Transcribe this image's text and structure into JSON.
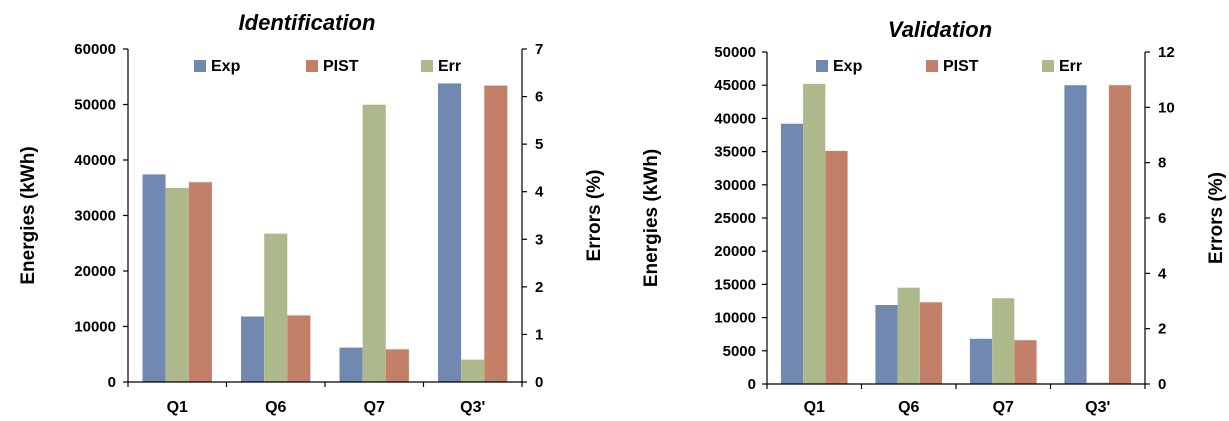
{
  "colors": {
    "Exp": "#7189b0",
    "PIST": "#c47f69",
    "Err": "#adb98a"
  },
  "chart_data": [
    {
      "type": "bar",
      "title": "Identification",
      "ylabel": "Energies (kWh)",
      "y2label": "Errors (%)",
      "categories": [
        "Q1",
        "Q6",
        "Q7",
        "Q3'"
      ],
      "ylim": [
        0,
        60000
      ],
      "y2lim": [
        0,
        7
      ],
      "yticks": [
        0,
        10000,
        20000,
        30000,
        40000,
        50000,
        60000
      ],
      "y2ticks": [
        0,
        1,
        2,
        3,
        4,
        5,
        6,
        7
      ],
      "legend": [
        "Exp",
        "PIST",
        "Err"
      ],
      "legend_position": "top",
      "series": [
        {
          "name": "Exp",
          "axis": "left",
          "values": [
            37400,
            11800,
            6200,
            53800
          ]
        },
        {
          "name": "Err",
          "axis": "right",
          "values": [
            4.08,
            3.12,
            5.83,
            0.47
          ]
        },
        {
          "name": "PIST",
          "axis": "left",
          "values": [
            36000,
            12000,
            5900,
            53400
          ]
        }
      ]
    },
    {
      "type": "bar",
      "title": "Validation",
      "ylabel": "Energies (kWh)",
      "y2label": "Errors (%)",
      "categories": [
        "Q1",
        "Q6",
        "Q7",
        "Q3'"
      ],
      "ylim": [
        0,
        50000
      ],
      "y2lim": [
        0,
        12
      ],
      "yticks": [
        0,
        5000,
        10000,
        15000,
        20000,
        25000,
        30000,
        35000,
        40000,
        45000,
        50000
      ],
      "y2ticks": [
        0,
        2,
        4,
        6,
        8,
        10,
        12
      ],
      "legend": [
        "Exp",
        "PIST",
        "Err"
      ],
      "legend_position": "top",
      "series": [
        {
          "name": "Exp",
          "axis": "left",
          "values": [
            39200,
            11900,
            6800,
            45000
          ]
        },
        {
          "name": "Err",
          "axis": "right",
          "values": [
            10.85,
            3.48,
            3.1,
            0.05
          ]
        },
        {
          "name": "PIST",
          "axis": "left",
          "values": [
            35100,
            12300,
            6600,
            45000
          ]
        }
      ]
    }
  ]
}
